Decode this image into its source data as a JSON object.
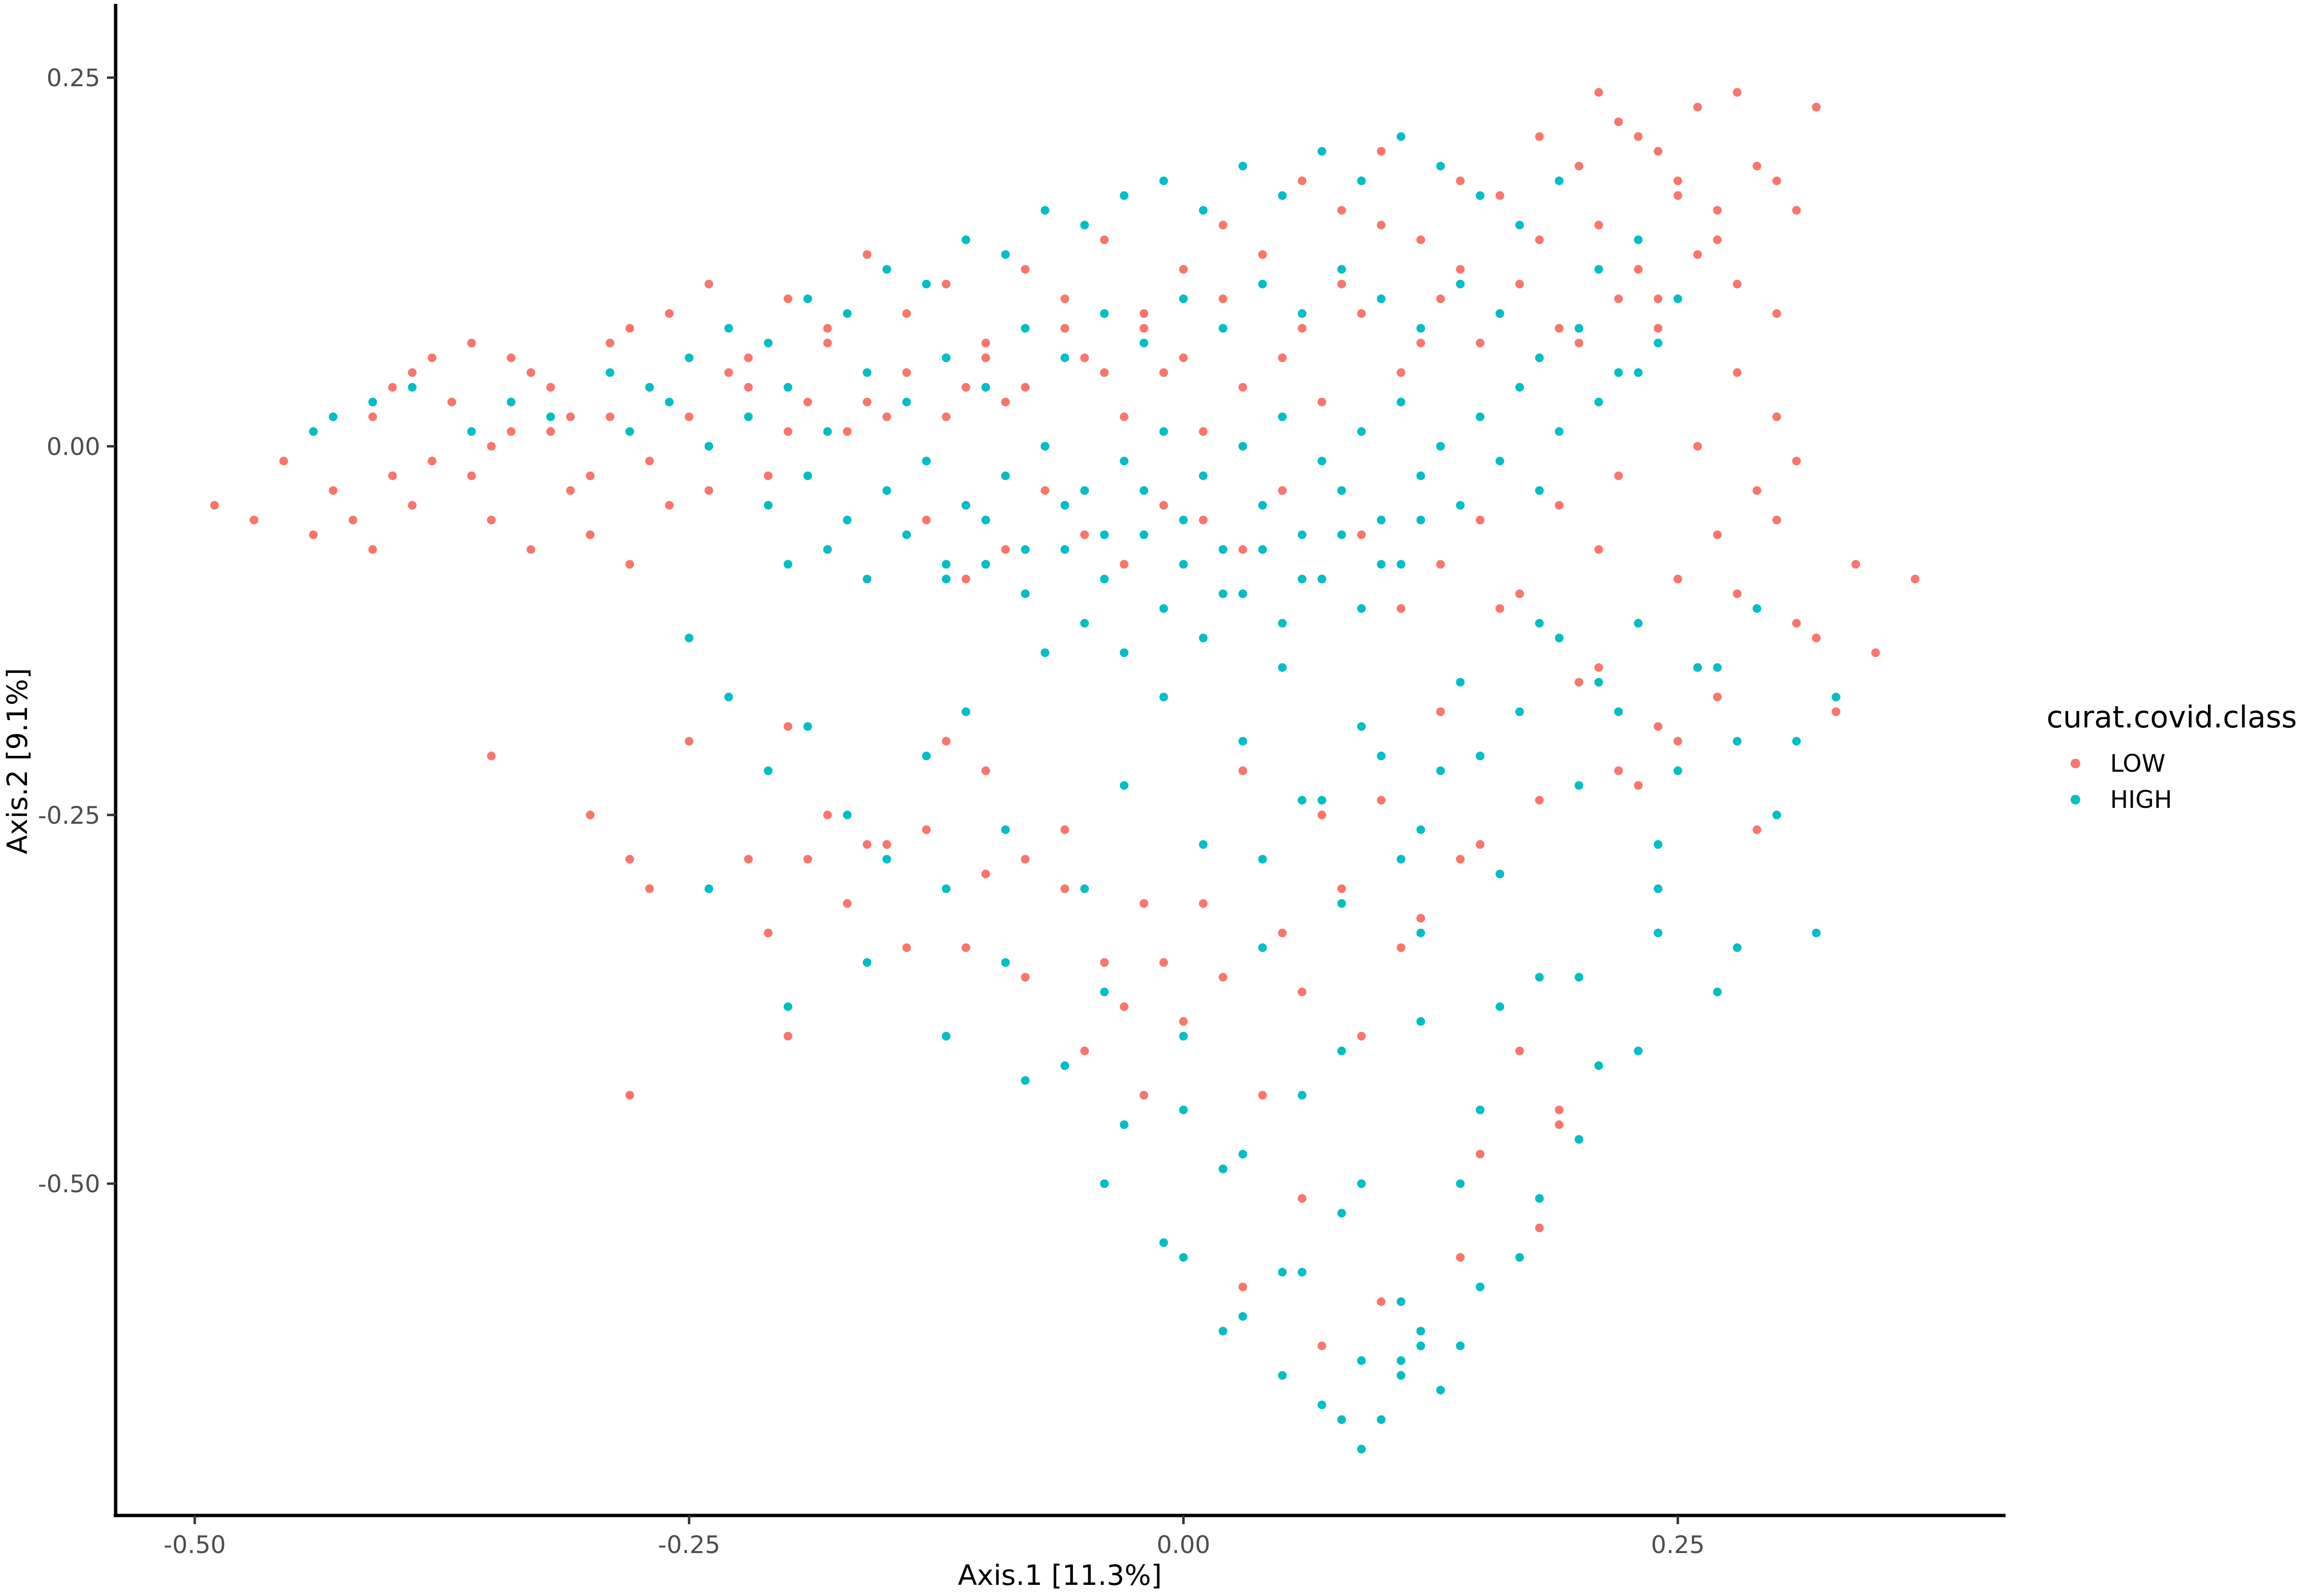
{
  "chart_data": {
    "type": "scatter",
    "title": "",
    "xlabel": "Axis.1   [11.3%]",
    "ylabel": "Axis.2   [9.1%]",
    "xlim": [
      -0.54,
      0.415
    ],
    "ylim": [
      -0.725,
      0.3
    ],
    "x_ticks": [
      -0.5,
      -0.25,
      0.0,
      0.25
    ],
    "x_tick_labels": [
      "-0.50",
      "-0.25",
      "0.00",
      "0.25"
    ],
    "y_ticks": [
      0.25,
      0.0,
      -0.25,
      -0.5
    ],
    "y_tick_labels": [
      "0.25",
      "0.00",
      "-0.25",
      "-0.50"
    ],
    "grid": false,
    "legend": {
      "title": "curat.covid.class",
      "position": "right",
      "entries": [
        {
          "label": "LOW",
          "color": "#F8766D"
        },
        {
          "label": "HIGH",
          "color": "#00BFC4"
        }
      ]
    },
    "series": [
      {
        "name": "LOW",
        "color": "#F8766D",
        "x": [
          -0.49,
          -0.47,
          -0.455,
          -0.44,
          -0.43,
          -0.42,
          -0.41,
          -0.4,
          -0.39,
          -0.38,
          -0.37,
          -0.36,
          -0.35,
          -0.34,
          -0.33,
          -0.32,
          -0.31,
          -0.3,
          -0.29,
          -0.28,
          -0.41,
          -0.4,
          -0.38,
          -0.36,
          -0.35,
          -0.33,
          -0.31,
          -0.29,
          -0.27,
          -0.39,
          -0.37,
          -0.34,
          -0.32,
          -0.3,
          -0.28,
          -0.26,
          -0.24,
          -0.22,
          -0.2,
          -0.18,
          -0.16,
          -0.14,
          -0.12,
          -0.1,
          -0.08,
          -0.06,
          -0.04,
          -0.02,
          0.0,
          0.02,
          0.04,
          0.06,
          0.08,
          0.1,
          0.12,
          0.14,
          0.16,
          0.18,
          0.2,
          0.22,
          0.24,
          0.26,
          0.28,
          0.3,
          0.32,
          0.21,
          0.23,
          0.25,
          0.27,
          0.29,
          0.31,
          0.19,
          0.17,
          0.15,
          0.13,
          0.11,
          0.09,
          0.07,
          0.05,
          0.03,
          0.01,
          -0.01,
          -0.03,
          -0.05,
          -0.07,
          -0.09,
          -0.11,
          -0.13,
          -0.15,
          -0.17,
          -0.19,
          -0.21,
          -0.23,
          -0.25,
          -0.27,
          0.22,
          0.24,
          0.26,
          0.28,
          0.3,
          0.25,
          0.27,
          0.23,
          0.21,
          0.18,
          0.16,
          0.14,
          0.12,
          0.1,
          0.08,
          0.06,
          0.04,
          0.02,
          0.0,
          -0.02,
          -0.04,
          -0.06,
          -0.08,
          -0.1,
          -0.12,
          -0.14,
          -0.16,
          -0.18,
          -0.2,
          -0.22,
          -0.24,
          -0.26,
          0.2,
          0.24,
          0.28,
          0.3,
          0.26,
          0.22,
          -0.35,
          -0.3,
          -0.28,
          -0.27,
          -0.25,
          -0.2,
          -0.21,
          -0.19,
          -0.18,
          -0.17,
          -0.15,
          -0.13,
          -0.11,
          -0.1,
          -0.08,
          -0.06,
          -0.05,
          -0.03,
          -0.01,
          0.01,
          0.03,
          0.05,
          0.07,
          0.09,
          0.11,
          0.13,
          0.15,
          0.17,
          0.19,
          0.21,
          0.23,
          0.25,
          0.27,
          0.29,
          0.31,
          0.33,
          0.35,
          0.37,
          0.34,
          0.32,
          0.3,
          0.28,
          0.26,
          0.24,
          0.22,
          0.2,
          0.18,
          0.16,
          0.14,
          0.12,
          0.1,
          0.08,
          0.06,
          0.04,
          0.02,
          0.0,
          -0.02,
          -0.04,
          -0.06,
          -0.08,
          -0.1,
          -0.12,
          -0.14,
          -0.16,
          -0.2,
          -0.22,
          -0.28,
          0.31,
          0.29,
          0.27,
          0.25,
          0.23,
          0.21,
          0.19,
          0.17,
          0.15,
          0.13,
          0.11,
          0.09,
          0.07,
          0.05,
          0.03,
          0.01,
          -0.01,
          -0.03,
          -0.05,
          -0.07,
          -0.09,
          -0.11,
          -0.13,
          0.18,
          0.14,
          0.1,
          0.06,
          0.02,
          -0.02,
          0.03,
          0.07,
          0.11,
          0.15,
          0.19
        ],
        "y": [
          -0.04,
          -0.05,
          -0.01,
          -0.06,
          -0.03,
          -0.05,
          -0.07,
          -0.02,
          -0.04,
          0.06,
          0.03,
          -0.02,
          -0.05,
          0.01,
          -0.07,
          0.04,
          -0.03,
          -0.06,
          0.02,
          -0.08,
          0.02,
          0.04,
          -0.01,
          0.07,
          0.0,
          0.05,
          0.02,
          0.07,
          0.04,
          0.05,
          0.03,
          0.06,
          0.01,
          -0.02,
          0.08,
          0.09,
          0.11,
          0.06,
          0.1,
          0.08,
          0.13,
          0.09,
          0.11,
          0.07,
          0.12,
          0.1,
          0.14,
          0.08,
          0.12,
          0.15,
          0.13,
          0.18,
          0.16,
          0.2,
          0.14,
          0.18,
          0.17,
          0.21,
          0.19,
          0.22,
          0.2,
          0.23,
          0.24,
          0.18,
          0.23,
          0.15,
          0.12,
          0.17,
          0.14,
          0.19,
          0.16,
          0.08,
          0.11,
          0.07,
          0.1,
          0.05,
          0.09,
          0.03,
          0.06,
          0.04,
          0.01,
          0.05,
          0.02,
          0.06,
          0.0,
          0.03,
          0.04,
          -0.01,
          0.02,
          0.01,
          0.03,
          -0.02,
          0.05,
          0.02,
          -0.01,
          0.1,
          0.08,
          0.13,
          0.11,
          0.09,
          0.18,
          0.16,
          0.21,
          0.24,
          0.14,
          0.09,
          0.12,
          0.07,
          0.15,
          0.11,
          0.08,
          0.13,
          0.1,
          0.06,
          0.09,
          0.05,
          0.08,
          0.04,
          0.06,
          0.02,
          0.05,
          0.03,
          0.07,
          0.01,
          0.04,
          -0.03,
          -0.04,
          0.07,
          0.1,
          0.05,
          0.02,
          0.0,
          -0.02,
          -0.21,
          -0.25,
          -0.28,
          -0.3,
          -0.2,
          -0.19,
          -0.33,
          -0.28,
          -0.25,
          -0.31,
          -0.27,
          -0.26,
          -0.34,
          -0.29,
          -0.36,
          -0.3,
          -0.41,
          -0.38,
          -0.35,
          -0.31,
          -0.22,
          -0.33,
          -0.25,
          -0.4,
          -0.34,
          -0.18,
          -0.27,
          -0.41,
          -0.46,
          -0.15,
          -0.23,
          -0.2,
          -0.17,
          -0.26,
          -0.12,
          -0.18,
          -0.14,
          -0.09,
          -0.08,
          -0.13,
          -0.05,
          -0.1,
          -0.15,
          -0.19,
          -0.22,
          -0.16,
          -0.24,
          -0.11,
          -0.28,
          -0.32,
          -0.24,
          -0.3,
          -0.37,
          -0.44,
          -0.36,
          -0.39,
          -0.31,
          -0.35,
          -0.26,
          -0.28,
          -0.22,
          -0.2,
          -0.34,
          -0.27,
          -0.4,
          -0.28,
          -0.44,
          -0.01,
          -0.03,
          -0.06,
          -0.09,
          -0.12,
          -0.07,
          -0.04,
          -0.1,
          -0.05,
          -0.08,
          -0.11,
          -0.06,
          -0.09,
          -0.03,
          -0.07,
          -0.05,
          -0.04,
          -0.08,
          -0.06,
          -0.03,
          -0.07,
          -0.09,
          -0.05,
          -0.53,
          -0.55,
          -0.58,
          -0.51,
          -0.49,
          -0.44,
          -0.57,
          -0.61,
          -0.63,
          -0.48,
          -0.45
        ]
      },
      {
        "name": "HIGH",
        "color": "#00BFC4",
        "x": [
          -0.44,
          -0.43,
          -0.41,
          -0.39,
          -0.36,
          -0.34,
          -0.32,
          -0.29,
          -0.27,
          -0.25,
          -0.23,
          -0.21,
          -0.19,
          -0.17,
          -0.15,
          -0.13,
          -0.11,
          -0.09,
          -0.07,
          -0.05,
          -0.03,
          -0.01,
          0.01,
          0.03,
          0.05,
          0.07,
          0.09,
          0.11,
          0.13,
          0.15,
          0.17,
          0.19,
          0.21,
          0.23,
          0.25,
          -0.28,
          -0.26,
          -0.24,
          -0.22,
          -0.2,
          -0.18,
          -0.16,
          -0.14,
          -0.12,
          -0.1,
          -0.08,
          -0.06,
          -0.04,
          -0.02,
          0.0,
          0.02,
          0.04,
          0.06,
          0.08,
          0.1,
          0.12,
          0.14,
          0.16,
          0.18,
          0.2,
          0.22,
          0.24,
          -0.21,
          -0.19,
          -0.17,
          -0.15,
          -0.13,
          -0.11,
          -0.09,
          -0.07,
          -0.05,
          -0.03,
          -0.01,
          0.01,
          0.03,
          0.05,
          0.07,
          0.09,
          0.11,
          0.13,
          0.15,
          0.17,
          0.19,
          0.21,
          0.23,
          -0.2,
          -0.18,
          -0.16,
          -0.14,
          -0.12,
          -0.1,
          -0.08,
          -0.06,
          -0.04,
          -0.02,
          0.0,
          0.02,
          0.04,
          0.06,
          0.08,
          0.1,
          0.12,
          0.14,
          0.16,
          0.18,
          -0.12,
          -0.1,
          -0.08,
          -0.06,
          -0.04,
          -0.02,
          0.0,
          0.02,
          0.04,
          0.06,
          0.08,
          0.1,
          0.12,
          -0.05,
          -0.03,
          -0.01,
          0.01,
          0.03,
          0.05,
          0.07,
          0.09,
          0.11,
          -0.25,
          -0.23,
          -0.21,
          -0.19,
          -0.17,
          -0.15,
          -0.13,
          -0.11,
          -0.09,
          -0.07,
          -0.05,
          -0.03,
          -0.01,
          0.01,
          0.03,
          0.05,
          0.07,
          0.09,
          0.11,
          0.13,
          0.15,
          0.17,
          0.19,
          0.21,
          0.23,
          0.25,
          0.27,
          0.29,
          0.31,
          0.33,
          -0.24,
          -0.2,
          -0.16,
          -0.12,
          -0.08,
          -0.04,
          0.0,
          0.04,
          0.08,
          0.12,
          0.16,
          0.2,
          0.24,
          0.28,
          -0.12,
          -0.09,
          -0.06,
          -0.03,
          0.0,
          0.03,
          0.06,
          0.09,
          0.12,
          0.15,
          0.18,
          0.21,
          0.24,
          0.27,
          -0.04,
          -0.01,
          0.02,
          0.05,
          0.08,
          0.11,
          0.14,
          0.17,
          0.2,
          0.23,
          0.0,
          0.03,
          0.06,
          0.09,
          0.12,
          0.15,
          0.18,
          0.02,
          0.05,
          0.08,
          0.11,
          0.14,
          0.07,
          0.09,
          0.11,
          0.13,
          0.1,
          0.12,
          0.3,
          0.32,
          0.28,
          0.26,
          0.24,
          0.22,
          0.2,
          0.18,
          0.16,
          0.14,
          0.12,
          0.1,
          0.08,
          0.06,
          0.04
        ],
        "y": [
          0.01,
          0.02,
          0.03,
          0.04,
          0.01,
          0.03,
          0.02,
          0.05,
          0.04,
          0.06,
          0.08,
          0.07,
          0.1,
          0.09,
          0.12,
          0.11,
          0.14,
          0.13,
          0.16,
          0.15,
          0.17,
          0.18,
          0.16,
          0.19,
          0.17,
          0.2,
          0.18,
          0.21,
          0.19,
          0.17,
          0.15,
          0.18,
          0.12,
          0.14,
          0.1,
          0.01,
          0.03,
          0.0,
          0.02,
          0.04,
          0.01,
          0.05,
          0.03,
          0.06,
          0.04,
          0.08,
          0.06,
          0.09,
          0.07,
          0.1,
          0.08,
          0.11,
          0.09,
          0.12,
          0.1,
          0.08,
          0.11,
          0.09,
          0.06,
          0.08,
          0.05,
          0.07,
          -0.04,
          -0.02,
          -0.05,
          -0.03,
          -0.01,
          -0.04,
          -0.02,
          0.0,
          -0.03,
          -0.01,
          0.01,
          -0.02,
          0.0,
          0.02,
          -0.01,
          0.01,
          0.03,
          0.0,
          0.02,
          0.04,
          0.01,
          0.03,
          0.05,
          -0.08,
          -0.07,
          -0.09,
          -0.06,
          -0.08,
          -0.05,
          -0.07,
          -0.04,
          -0.06,
          -0.03,
          -0.05,
          -0.07,
          -0.04,
          -0.06,
          -0.03,
          -0.05,
          -0.02,
          -0.04,
          -0.01,
          -0.03,
          -0.09,
          -0.08,
          -0.1,
          -0.07,
          -0.09,
          -0.06,
          -0.08,
          -0.1,
          -0.07,
          -0.09,
          -0.06,
          -0.08,
          -0.05,
          -0.12,
          -0.14,
          -0.11,
          -0.13,
          -0.1,
          -0.12,
          -0.09,
          -0.11,
          -0.08,
          -0.13,
          -0.17,
          -0.22,
          -0.19,
          -0.25,
          -0.28,
          -0.21,
          -0.18,
          -0.26,
          -0.14,
          -0.3,
          -0.23,
          -0.17,
          -0.27,
          -0.2,
          -0.15,
          -0.24,
          -0.19,
          -0.28,
          -0.22,
          -0.21,
          -0.18,
          -0.13,
          -0.16,
          -0.12,
          -0.22,
          -0.15,
          -0.11,
          -0.2,
          -0.17,
          -0.3,
          -0.38,
          -0.35,
          -0.4,
          -0.43,
          -0.37,
          -0.45,
          -0.34,
          -0.41,
          -0.33,
          -0.38,
          -0.36,
          -0.3,
          -0.34,
          -0.3,
          -0.35,
          -0.42,
          -0.46,
          -0.4,
          -0.48,
          -0.44,
          -0.5,
          -0.39,
          -0.45,
          -0.36,
          -0.42,
          -0.33,
          -0.37,
          -0.5,
          -0.54,
          -0.49,
          -0.56,
          -0.52,
          -0.58,
          -0.5,
          -0.55,
          -0.47,
          -0.41,
          -0.55,
          -0.59,
          -0.56,
          -0.62,
          -0.6,
          -0.57,
          -0.51,
          -0.6,
          -0.63,
          -0.66,
          -0.62,
          -0.61,
          -0.65,
          -0.68,
          -0.63,
          -0.64,
          -0.66,
          -0.61,
          -0.25,
          -0.33,
          -0.2,
          -0.15,
          -0.27,
          -0.18,
          -0.23,
          -0.12,
          -0.29,
          -0.16,
          -0.26,
          -0.21,
          -0.31,
          -0.24,
          -0.28
        ]
      }
    ]
  }
}
